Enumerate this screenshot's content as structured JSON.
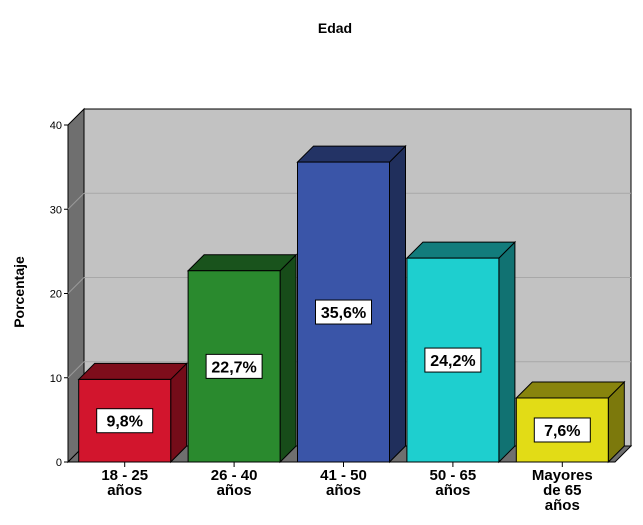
{
  "chart_data": {
    "type": "bar",
    "title": "Edad",
    "xlabel": "",
    "ylabel": "Porcentaje",
    "ylim": [
      0,
      40
    ],
    "yticks": [
      0,
      10,
      20,
      30,
      40
    ],
    "grid": true,
    "legend": "none",
    "categories": [
      [
        "18 - 25",
        "años"
      ],
      [
        "26 - 40",
        "años"
      ],
      [
        "41 - 50",
        "años"
      ],
      [
        "50 - 65",
        "años"
      ],
      [
        "Mayores",
        "de 65",
        "años"
      ]
    ],
    "values": [
      9.8,
      22.7,
      35.6,
      24.2,
      7.6
    ],
    "data_labels": [
      "9,8%",
      "22,7%",
      "35,6%",
      "24,2%",
      "7,6%"
    ],
    "colors": [
      "#d2152d",
      "#2a8a2e",
      "#3a55a8",
      "#1ecfcf",
      "#e2dc16"
    ]
  }
}
